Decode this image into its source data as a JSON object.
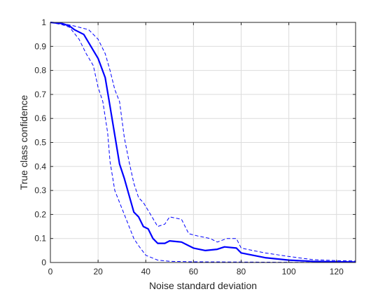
{
  "chart_data": {
    "type": "line",
    "title": "",
    "xlabel": "Noise standard deviation",
    "ylabel": "True class confidence",
    "xlim": [
      0,
      128
    ],
    "ylim": [
      0,
      1
    ],
    "xticks": [
      0,
      20,
      40,
      60,
      80,
      100,
      120
    ],
    "yticks": [
      0,
      0.1,
      0.2,
      0.3,
      0.4,
      0.5,
      0.6,
      0.7,
      0.8,
      0.9,
      1
    ],
    "grid": true,
    "legend": "none",
    "color": "#0000ff",
    "series": [
      {
        "style": "solid",
        "points": [
          [
            0,
            1
          ],
          [
            5,
            0.995
          ],
          [
            8,
            0.985
          ],
          [
            10,
            0.97
          ],
          [
            14,
            0.95
          ],
          [
            17,
            0.9
          ],
          [
            20,
            0.85
          ],
          [
            23,
            0.77
          ],
          [
            25,
            0.65
          ],
          [
            27,
            0.53
          ],
          [
            29,
            0.41
          ],
          [
            31,
            0.35
          ],
          [
            33,
            0.28
          ],
          [
            35,
            0.21
          ],
          [
            37,
            0.19
          ],
          [
            39,
            0.15
          ],
          [
            41,
            0.14
          ],
          [
            43,
            0.1
          ],
          [
            45,
            0.08
          ],
          [
            48,
            0.08
          ],
          [
            50,
            0.09
          ],
          [
            55,
            0.085
          ],
          [
            58,
            0.07
          ],
          [
            60,
            0.06
          ],
          [
            65,
            0.05
          ],
          [
            70,
            0.055
          ],
          [
            73,
            0.065
          ],
          [
            78,
            0.06
          ],
          [
            80,
            0.04
          ],
          [
            85,
            0.03
          ],
          [
            90,
            0.02
          ],
          [
            95,
            0.015
          ],
          [
            100,
            0.01
          ],
          [
            110,
            0.005
          ],
          [
            120,
            0.003
          ],
          [
            128,
            0.002
          ]
        ]
      },
      {
        "style": "dashed",
        "points": [
          [
            0,
            1
          ],
          [
            5,
            0.995
          ],
          [
            10,
            0.985
          ],
          [
            14,
            0.975
          ],
          [
            16,
            0.97
          ],
          [
            20,
            0.93
          ],
          [
            23,
            0.87
          ],
          [
            25,
            0.8
          ],
          [
            27,
            0.72
          ],
          [
            29,
            0.67
          ],
          [
            31,
            0.52
          ],
          [
            33,
            0.42
          ],
          [
            35,
            0.33
          ],
          [
            37,
            0.27
          ],
          [
            39,
            0.25
          ],
          [
            42,
            0.2
          ],
          [
            45,
            0.15
          ],
          [
            48,
            0.16
          ],
          [
            50,
            0.19
          ],
          [
            55,
            0.18
          ],
          [
            58,
            0.12
          ],
          [
            62,
            0.11
          ],
          [
            67,
            0.1
          ],
          [
            70,
            0.085
          ],
          [
            74,
            0.1
          ],
          [
            78,
            0.1
          ],
          [
            80,
            0.06
          ],
          [
            85,
            0.05
          ],
          [
            90,
            0.04
          ],
          [
            100,
            0.025
          ],
          [
            110,
            0.012
          ],
          [
            120,
            0.008
          ],
          [
            128,
            0.006
          ]
        ]
      },
      {
        "style": "dashed",
        "points": [
          [
            0,
            1
          ],
          [
            5,
            0.99
          ],
          [
            8,
            0.98
          ],
          [
            12,
            0.93
          ],
          [
            15,
            0.87
          ],
          [
            18,
            0.82
          ],
          [
            20,
            0.73
          ],
          [
            22,
            0.67
          ],
          [
            24,
            0.54
          ],
          [
            25,
            0.42
          ],
          [
            27,
            0.3
          ],
          [
            29,
            0.25
          ],
          [
            31,
            0.2
          ],
          [
            33,
            0.15
          ],
          [
            35,
            0.1
          ],
          [
            37,
            0.07
          ],
          [
            40,
            0.03
          ],
          [
            45,
            0.01
          ],
          [
            50,
            0.005
          ],
          [
            60,
            0.003
          ],
          [
            80,
            0.002
          ],
          [
            100,
            0.001
          ],
          [
            128,
            0.001
          ]
        ]
      }
    ]
  }
}
